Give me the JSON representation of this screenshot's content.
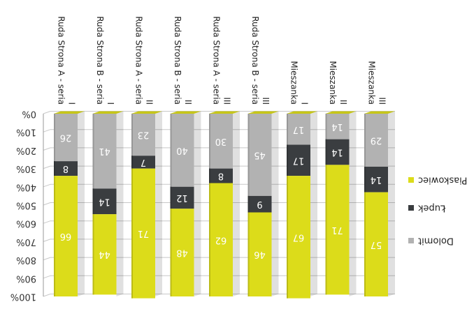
{
  "chart_data": {
    "type": "stacked-bar-100",
    "orientation": "rotated-180",
    "categories": [
      [
        "Ruda Strona A - seria",
        "I"
      ],
      [
        "Ruda Strona B - seria",
        "I"
      ],
      [
        "Ruda Strona A - seria",
        "II"
      ],
      [
        "Ruda Strona B - seria",
        "II"
      ],
      [
        "Ruda Strona A - seria",
        "III"
      ],
      [
        "Ruda Strona B - seria",
        "III"
      ],
      [
        "Mieszanka",
        "I"
      ],
      [
        "Mieszanka",
        "II"
      ],
      [
        "Mieszanka",
        "III"
      ]
    ],
    "series": [
      {
        "name": "Dolomit",
        "values": [
          26,
          41,
          23,
          40,
          30,
          45,
          17,
          14,
          29
        ],
        "labels": [
          "26",
          "41",
          "23",
          "40",
          "30",
          "45",
          "17",
          "14",
          "29"
        ],
        "color": "#b2b2b2"
      },
      {
        "name": "Łupek",
        "values": [
          8,
          14,
          7,
          12,
          8,
          9,
          17,
          14,
          14
        ],
        "labels": [
          "8",
          "14",
          "7",
          "12",
          "8",
          "9",
          "17",
          "14",
          "14"
        ],
        "color": "#3a3d40"
      },
      {
        "name": "Piaskowiec",
        "values": [
          66,
          44,
          71,
          48,
          62,
          46,
          67,
          71,
          57
        ],
        "labels": [
          "66",
          "44",
          "71",
          "48",
          "62",
          "46",
          "67",
          "71",
          "57"
        ],
        "color": "#dcdc1a"
      }
    ],
    "y_ticks": [
      "0%",
      "10%",
      "20%",
      "30%",
      "40%",
      "50%",
      "60%",
      "70%",
      "80%",
      "90%",
      "100%"
    ],
    "ylim": [
      0,
      100
    ],
    "legend_position": "right"
  }
}
